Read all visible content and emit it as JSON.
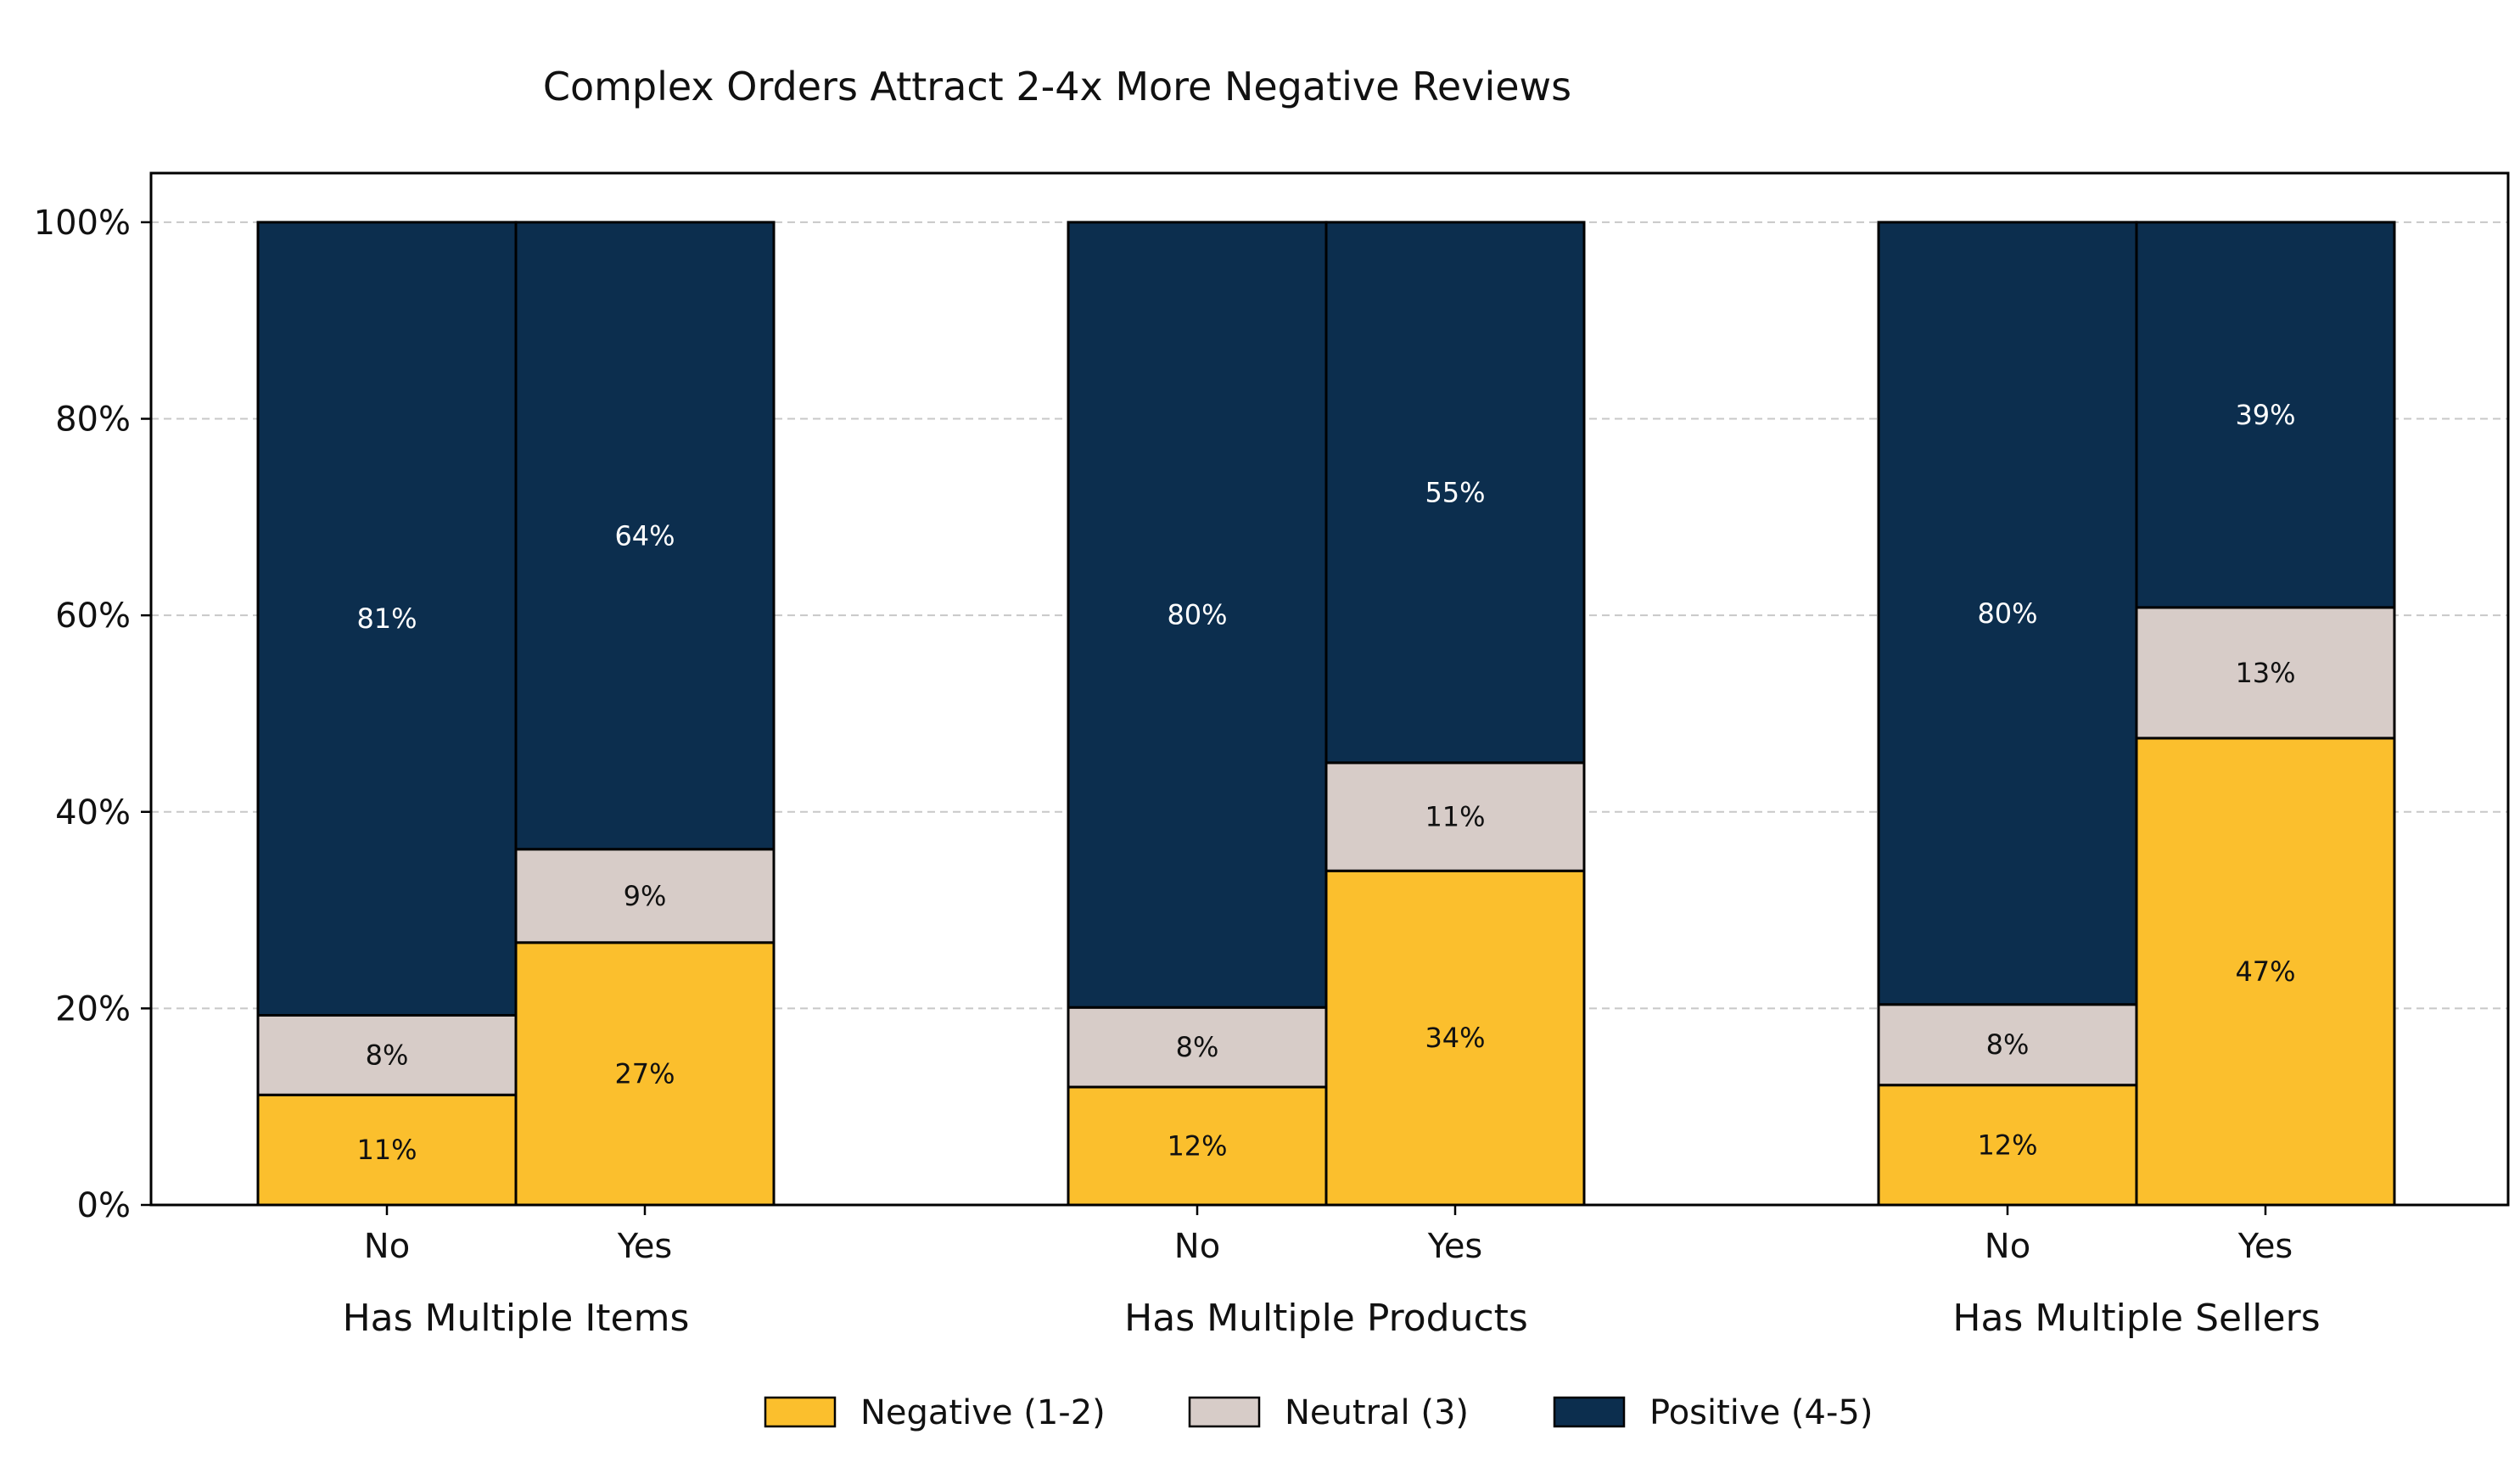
{
  "chart_data": {
    "type": "bar",
    "stacked": true,
    "percent_stacked": true,
    "title": "Complex Orders Attract 2-4x More Negative Reviews",
    "xlabel": "",
    "ylabel": "",
    "ylim": [
      0,
      105
    ],
    "yticks": [
      {
        "value": 0,
        "label": "0%"
      },
      {
        "value": 20,
        "label": "20%"
      },
      {
        "value": 40,
        "label": "40%"
      },
      {
        "value": 60,
        "label": "60%"
      },
      {
        "value": 80,
        "label": "80%"
      },
      {
        "value": 100,
        "label": "100%"
      }
    ],
    "grid": "horizontal-dashed",
    "legend_position": "bottom-center",
    "groups": [
      {
        "label": "Has Multiple Items",
        "categories": [
          "No",
          "Yes"
        ]
      },
      {
        "label": "Has Multiple Products",
        "categories": [
          "No",
          "Yes"
        ]
      },
      {
        "label": "Has Multiple Sellers",
        "categories": [
          "No",
          "Yes"
        ]
      }
    ],
    "series": [
      {
        "name": "Negative (1-2)",
        "color": "#fbbf2d",
        "label_color": "#111111",
        "values": [
          11.2,
          26.7,
          12.0,
          34.0,
          12.2,
          47.5
        ],
        "labels": [
          "11%",
          "27%",
          "12%",
          "34%",
          "12%",
          "47%"
        ]
      },
      {
        "name": "Neutral (3)",
        "color": "#d7ccc8",
        "label_color": "#111111",
        "values": [
          8.1,
          9.5,
          8.1,
          11.0,
          8.2,
          13.3
        ],
        "labels": [
          "8%",
          "9%",
          "8%",
          "11%",
          "8%",
          "13%"
        ]
      },
      {
        "name": "Positive (4-5)",
        "color": "#0c2e4e",
        "label_color": "#ffffff",
        "values": [
          80.7,
          63.8,
          79.9,
          55.0,
          79.6,
          39.2
        ],
        "labels": [
          "81%",
          "64%",
          "80%",
          "55%",
          "80%",
          "39%"
        ]
      }
    ]
  }
}
